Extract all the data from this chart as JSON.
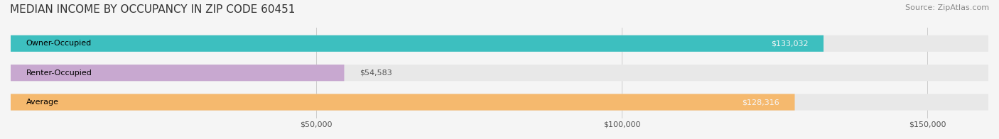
{
  "title": "MEDIAN INCOME BY OCCUPANCY IN ZIP CODE 60451",
  "source": "Source: ZipAtlas.com",
  "categories": [
    "Owner-Occupied",
    "Renter-Occupied",
    "Average"
  ],
  "values": [
    133032,
    54583,
    128316
  ],
  "bar_colors": [
    "#3dbfbf",
    "#c8a8d0",
    "#f5b96e"
  ],
  "label_colors": [
    "#ffffff",
    "#555555",
    "#ffffff"
  ],
  "value_labels": [
    "$133,032",
    "$54,583",
    "$128,316"
  ],
  "xlim": [
    0,
    160000
  ],
  "xticks": [
    0,
    50000,
    100000,
    150000
  ],
  "xtick_labels": [
    "",
    "$50,000",
    "$100,000",
    "$150,000"
  ],
  "bar_height": 0.55,
  "background_color": "#f5f5f5",
  "bar_background_color": "#e8e8e8",
  "title_fontsize": 11,
  "source_fontsize": 8,
  "label_fontsize": 8,
  "value_fontsize": 8
}
